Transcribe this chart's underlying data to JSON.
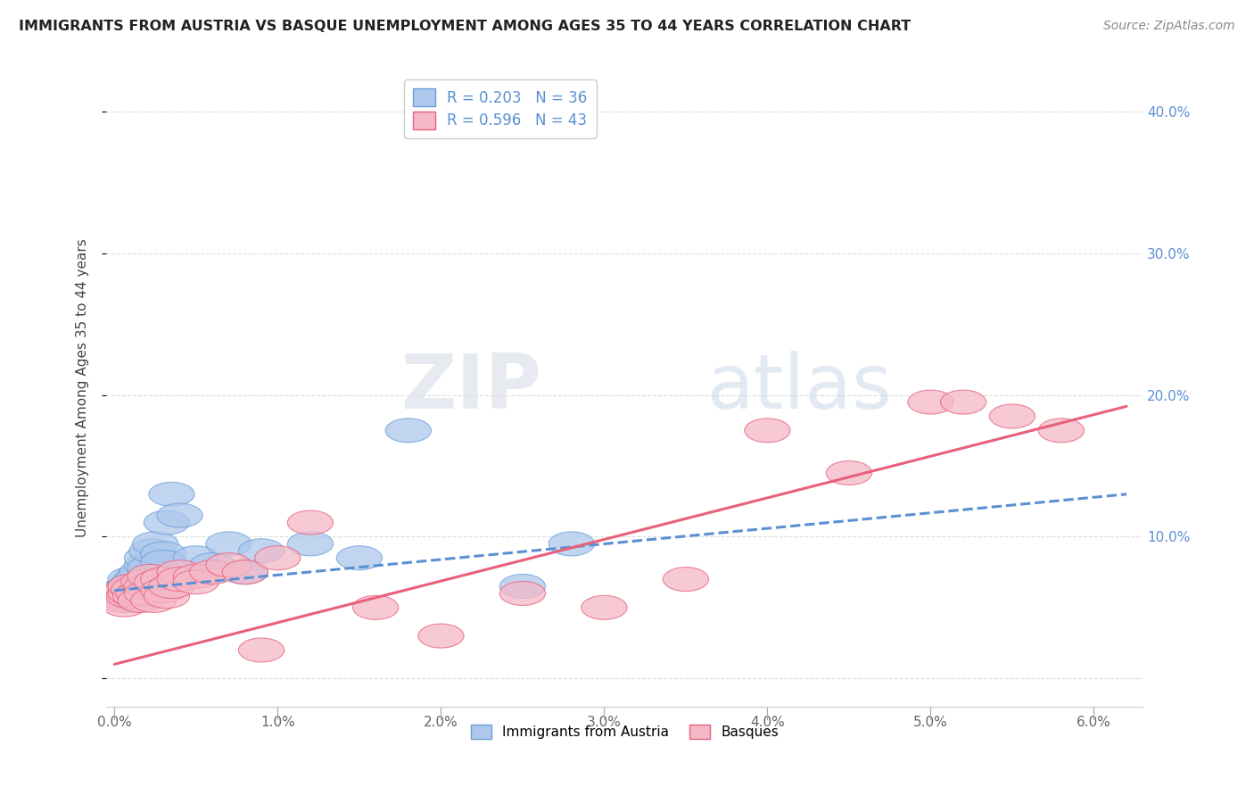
{
  "title": "IMMIGRANTS FROM AUSTRIA VS BASQUE UNEMPLOYMENT AMONG AGES 35 TO 44 YEARS CORRELATION CHART",
  "source": "Source: ZipAtlas.com",
  "ylabel": "Unemployment Among Ages 35 to 44 years",
  "xlim": [
    -0.0005,
    0.063
  ],
  "ylim": [
    -0.02,
    0.43
  ],
  "xticks": [
    0.0,
    0.01,
    0.02,
    0.03,
    0.04,
    0.05,
    0.06
  ],
  "xticklabels": [
    "0.0%",
    "1.0%",
    "2.0%",
    "3.0%",
    "4.0%",
    "5.0%",
    "6.0%"
  ],
  "yticks": [
    0.0,
    0.1,
    0.2,
    0.3,
    0.4
  ],
  "yticklabels": [
    "",
    "10.0%",
    "20.0%",
    "30.0%",
    "40.0%"
  ],
  "legend_r1": "R = 0.203",
  "legend_n1": "N = 36",
  "legend_r2": "R = 0.596",
  "legend_n2": "N = 43",
  "legend_label1": "Immigrants from Austria",
  "legend_label2": "Basques",
  "blue_color": "#adc8ec",
  "pink_color": "#f5b8c8",
  "blue_line_color": "#5b8fd4",
  "pink_line_color": "#e8607a",
  "blue_edge_color": "#6a9fd8",
  "pink_edge_color": "#e8607a",
  "austria_x": [
    0.0002,
    0.0004,
    0.0005,
    0.0006,
    0.0007,
    0.0008,
    0.0009,
    0.001,
    0.001,
    0.0012,
    0.0013,
    0.0014,
    0.0015,
    0.0016,
    0.0017,
    0.0018,
    0.002,
    0.002,
    0.0022,
    0.0023,
    0.0025,
    0.003,
    0.003,
    0.0032,
    0.0035,
    0.004,
    0.005,
    0.006,
    0.007,
    0.008,
    0.009,
    0.012,
    0.015,
    0.018,
    0.025,
    0.028
  ],
  "austria_y": [
    0.06,
    0.058,
    0.062,
    0.057,
    0.063,
    0.055,
    0.06,
    0.065,
    0.07,
    0.068,
    0.055,
    0.058,
    0.072,
    0.06,
    0.075,
    0.065,
    0.08,
    0.085,
    0.078,
    0.09,
    0.095,
    0.088,
    0.082,
    0.11,
    0.13,
    0.115,
    0.085,
    0.08,
    0.095,
    0.075,
    0.09,
    0.095,
    0.085,
    0.175,
    0.065,
    0.095
  ],
  "basque_x": [
    0.0002,
    0.0004,
    0.0005,
    0.0006,
    0.0008,
    0.0009,
    0.001,
    0.001,
    0.0012,
    0.0013,
    0.0015,
    0.0016,
    0.0018,
    0.002,
    0.002,
    0.0022,
    0.0024,
    0.0026,
    0.003,
    0.003,
    0.0032,
    0.0035,
    0.004,
    0.004,
    0.005,
    0.005,
    0.006,
    0.007,
    0.008,
    0.009,
    0.01,
    0.012,
    0.016,
    0.02,
    0.025,
    0.03,
    0.035,
    0.04,
    0.045,
    0.05,
    0.052,
    0.055,
    0.058
  ],
  "basque_y": [
    0.058,
    0.055,
    0.06,
    0.052,
    0.062,
    0.058,
    0.06,
    0.065,
    0.063,
    0.058,
    0.06,
    0.055,
    0.068,
    0.065,
    0.06,
    0.072,
    0.055,
    0.068,
    0.07,
    0.062,
    0.058,
    0.065,
    0.075,
    0.07,
    0.072,
    0.068,
    0.075,
    0.08,
    0.075,
    0.02,
    0.085,
    0.11,
    0.05,
    0.03,
    0.06,
    0.05,
    0.07,
    0.175,
    0.145,
    0.195,
    0.195,
    0.185,
    0.175
  ],
  "austria_line_x0": 0.0,
  "austria_line_x1": 0.062,
  "austria_line_y0": 0.062,
  "austria_line_y1": 0.13,
  "basque_line_x0": 0.0,
  "basque_line_x1": 0.062,
  "basque_line_y0": 0.01,
  "basque_line_y1": 0.192,
  "watermark_zip": "ZIP",
  "watermark_atlas": "atlas",
  "background_color": "#ffffff",
  "grid_color": "#dddddd",
  "grid_style": "--"
}
